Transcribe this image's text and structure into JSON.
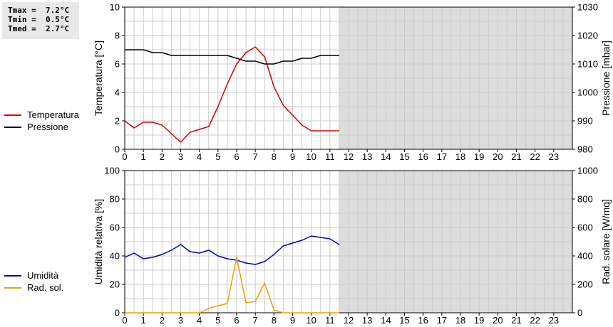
{
  "stats": {
    "tmax": "Tmax =  7.2°C",
    "tmin": "Tmin =  0.5°C",
    "tmed": "Tmed =  2.7°C"
  },
  "legend_top": [
    {
      "label": "Temperatura",
      "color": "#dd0000"
    },
    {
      "label": "Pressione",
      "color": "#000000"
    }
  ],
  "legend_bottom": [
    {
      "label": "Umidità",
      "color": "#0000cc"
    },
    {
      "label": "Rad. sol.",
      "color": "#f0a000"
    }
  ],
  "chart_data": [
    {
      "type": "line",
      "xlim": [
        0,
        24
      ],
      "x_ticks": [
        0,
        1,
        2,
        3,
        4,
        5,
        6,
        7,
        8,
        9,
        10,
        11,
        12,
        13,
        14,
        15,
        16,
        17,
        18,
        19,
        20,
        21,
        22,
        23
      ],
      "ylabel": "Temperatura [°C]",
      "ylim": [
        0,
        10
      ],
      "y_ticks": [
        0,
        2,
        4,
        6,
        8,
        10
      ],
      "y2label": "Pressione [mbar]",
      "y2lim": [
        980,
        1030
      ],
      "y2_ticks": [
        980,
        990,
        1000,
        1010,
        1020,
        1030
      ],
      "no_data_from": 11.5,
      "grid": true,
      "series": [
        {
          "name": "Temperatura",
          "axis": "left",
          "color": "#dd0000",
          "x": [
            0,
            0.5,
            1,
            1.5,
            2,
            2.5,
            3,
            3.5,
            4,
            4.5,
            5,
            5.5,
            6,
            6.5,
            7,
            7.5,
            8,
            8.5,
            9,
            9.5,
            10,
            10.5,
            11,
            11.5
          ],
          "values": [
            2.0,
            1.5,
            1.9,
            1.9,
            1.7,
            1.1,
            0.5,
            1.2,
            1.4,
            1.6,
            3.0,
            4.6,
            6.0,
            6.8,
            7.2,
            6.5,
            4.4,
            3.1,
            2.4,
            1.7,
            1.3,
            1.3,
            1.3,
            1.3
          ]
        },
        {
          "name": "Pressione",
          "axis": "right",
          "color": "#000000",
          "x": [
            0,
            0.5,
            1,
            1.5,
            2,
            2.5,
            3,
            3.5,
            4,
            4.5,
            5,
            5.5,
            6,
            6.5,
            7,
            7.5,
            8,
            8.5,
            9,
            9.5,
            10,
            10.5,
            11,
            11.5
          ],
          "values": [
            1015,
            1015,
            1015,
            1014,
            1014,
            1013,
            1013,
            1013,
            1013,
            1013,
            1013,
            1013,
            1012,
            1011,
            1011,
            1010,
            1010,
            1011,
            1011,
            1012,
            1012,
            1013,
            1013,
            1013
          ]
        }
      ]
    },
    {
      "type": "line",
      "xlim": [
        0,
        24
      ],
      "x_ticks": [
        0,
        1,
        2,
        3,
        4,
        5,
        6,
        7,
        8,
        9,
        10,
        11,
        12,
        13,
        14,
        15,
        16,
        17,
        18,
        19,
        20,
        21,
        22,
        23
      ],
      "ylabel": "Umidità relativa [%]",
      "ylim": [
        0,
        100
      ],
      "y_ticks": [
        0,
        20,
        40,
        60,
        80,
        100
      ],
      "y2label": "Rad. solare [W/mq]",
      "y2lim": [
        0,
        1000
      ],
      "y2_ticks": [
        0,
        200,
        400,
        600,
        800,
        1000
      ],
      "no_data_from": 11.5,
      "grid": true,
      "series": [
        {
          "name": "Umidità",
          "axis": "left",
          "color": "#0000cc",
          "x": [
            0,
            0.5,
            1,
            1.5,
            2,
            2.5,
            3,
            3.5,
            4,
            4.5,
            5,
            5.5,
            6,
            6.5,
            7,
            7.5,
            8,
            8.5,
            9,
            9.5,
            10,
            10.5,
            11,
            11.5
          ],
          "values": [
            39,
            42,
            38,
            39,
            41,
            44,
            48,
            43,
            42,
            44,
            40,
            38,
            37,
            35,
            34,
            36,
            41,
            47,
            49,
            51,
            54,
            53,
            52,
            48
          ]
        },
        {
          "name": "Rad. sol.",
          "axis": "right",
          "color": "#f0a000",
          "x": [
            0,
            0.5,
            1,
            1.5,
            2,
            2.5,
            3,
            3.5,
            4,
            4.5,
            5,
            5.5,
            6,
            6.5,
            7,
            7.5,
            8,
            8.5,
            9,
            9.5,
            10,
            10.5,
            11,
            11.5
          ],
          "values": [
            0,
            0,
            0,
            0,
            0,
            0,
            0,
            0,
            0,
            30,
            50,
            65,
            390,
            70,
            80,
            210,
            20,
            0,
            0,
            0,
            0,
            0,
            0,
            0
          ]
        }
      ]
    }
  ]
}
